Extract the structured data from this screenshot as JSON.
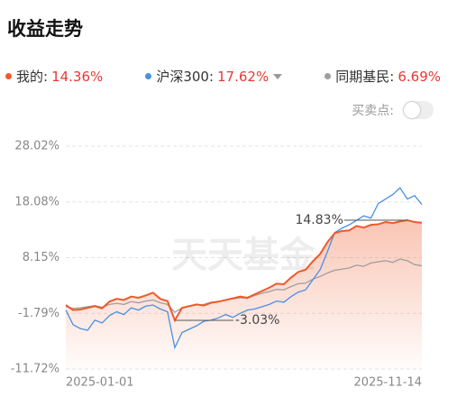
{
  "header": {
    "title": "收益走势"
  },
  "toggle": {
    "label": "买卖点:",
    "on": false
  },
  "chart_data": {
    "type": "line",
    "watermark": "天天基金",
    "categories": [
      "2025-01-01",
      null,
      null,
      null,
      null,
      null,
      null,
      null,
      null,
      null,
      null,
      null,
      null,
      null,
      null,
      null,
      null,
      null,
      null,
      null,
      null,
      null,
      null,
      null,
      null,
      null,
      null,
      null,
      null,
      null,
      null,
      null,
      null,
      null,
      null,
      null,
      null,
      null,
      null,
      null,
      null,
      null,
      null,
      null,
      null,
      null,
      null,
      null,
      null,
      "2025-11-14"
    ],
    "series": [
      {
        "name": "我的:",
        "color": "#f0592a",
        "summary": {
          "value": 14.36,
          "label": "14.36%"
        },
        "values": [
          -0.3,
          -1.2,
          -1.1,
          -0.8,
          -0.5,
          -0.9,
          0.3,
          0.8,
          0.6,
          1.2,
          1.0,
          1.4,
          1.9,
          0.8,
          0.4,
          -3.03,
          -0.8,
          -0.5,
          -0.2,
          -0.4,
          0.1,
          0.3,
          0.6,
          0.9,
          1.2,
          1.0,
          1.6,
          2.2,
          2.8,
          3.5,
          3.4,
          4.6,
          5.6,
          6.0,
          7.5,
          8.8,
          10.9,
          12.5,
          12.9,
          13.0,
          13.8,
          13.5,
          14.0,
          14.1,
          14.5,
          14.3,
          14.6,
          14.83,
          14.5,
          14.36
        ]
      },
      {
        "name": "沪深300:",
        "color": "#4a90e2",
        "summary": {
          "value": 17.62,
          "label": "17.62%"
        },
        "values": [
          -1.2,
          -3.8,
          -4.5,
          -4.8,
          -3.0,
          -3.5,
          -2.2,
          -1.5,
          -2.0,
          -0.8,
          -1.2,
          -0.5,
          -0.3,
          -1.0,
          -1.5,
          -7.9,
          -5.2,
          -4.6,
          -4.0,
          -3.2,
          -3.0,
          -2.6,
          -2.0,
          -2.5,
          -1.8,
          -1.2,
          -1.0,
          -0.6,
          -0.2,
          0.4,
          0.2,
          1.2,
          2.0,
          2.4,
          4.2,
          6.0,
          9.2,
          12.6,
          13.4,
          14.0,
          14.8,
          15.6,
          15.2,
          17.8,
          18.6,
          19.4,
          20.6,
          18.6,
          19.2,
          17.62
        ]
      },
      {
        "name": "同期基民:",
        "color": "#9e9e9e",
        "summary": {
          "value": 6.69,
          "label": "6.69%"
        },
        "values": [
          -0.6,
          -0.9,
          -0.8,
          -0.6,
          -0.4,
          -0.7,
          -0.2,
          0.0,
          -0.2,
          0.3,
          0.1,
          0.4,
          0.6,
          0.1,
          -0.2,
          -1.6,
          -0.8,
          -0.5,
          -0.3,
          -0.2,
          0.2,
          0.3,
          0.6,
          0.8,
          1.0,
          0.9,
          1.4,
          1.8,
          2.1,
          2.5,
          2.4,
          3.0,
          3.5,
          3.6,
          4.3,
          4.8,
          5.4,
          5.9,
          6.1,
          6.3,
          6.8,
          6.6,
          7.2,
          7.4,
          7.6,
          7.3,
          7.9,
          7.6,
          6.9,
          6.69
        ]
      }
    ],
    "summary_color": "#e53935",
    "annotations": [
      {
        "value": 14.83,
        "label": "14.83%"
      },
      {
        "value": -3.03,
        "label": "-3.03%"
      }
    ],
    "ylim": [
      -11.72,
      28.02
    ],
    "yticks": [
      {
        "value": 28.02,
        "label": "28.02%"
      },
      {
        "value": 18.08,
        "label": "18.08%"
      },
      {
        "value": 8.15,
        "label": "8.15%"
      },
      {
        "value": -1.79,
        "label": "-1.79%"
      },
      {
        "value": -11.72,
        "label": "-11.72%"
      }
    ],
    "grid": true
  }
}
